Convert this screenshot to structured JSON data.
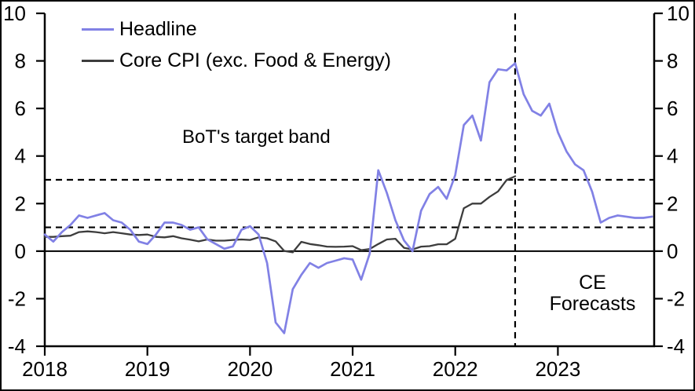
{
  "chart_data": {
    "type": "line",
    "title": "",
    "xlabel": "",
    "ylabel": "",
    "x_frequency": "monthly",
    "x_start": "2018-01",
    "x_end": "2023-12",
    "x_tick_labels": [
      "2018",
      "2019",
      "2020",
      "2021",
      "2022",
      "2023"
    ],
    "y_ticks": [
      10,
      8,
      6,
      4,
      2,
      0,
      -2,
      -4
    ],
    "ylim": [
      -4,
      10
    ],
    "y_axis_sides": "both",
    "grid": false,
    "legend_position": "top-left",
    "series": [
      {
        "name": "Headline",
        "color": "#8181e5",
        "forecast_start_index": 56,
        "values": [
          0.7,
          0.4,
          0.8,
          1.1,
          1.5,
          1.4,
          1.5,
          1.6,
          1.3,
          1.2,
          0.9,
          0.4,
          0.3,
          0.7,
          1.2,
          1.2,
          1.1,
          0.9,
          1.0,
          0.5,
          0.3,
          0.1,
          0.2,
          0.9,
          1.05,
          0.7,
          -0.5,
          -3.0,
          -3.45,
          -1.6,
          -1.0,
          -0.5,
          -0.7,
          -0.5,
          -0.4,
          -0.3,
          -0.35,
          -1.2,
          -0.1,
          3.4,
          2.45,
          1.3,
          0.45,
          0.0,
          1.7,
          2.4,
          2.7,
          2.2,
          3.2,
          5.3,
          5.7,
          4.65,
          7.1,
          7.65,
          7.6,
          7.9,
          6.6,
          5.9,
          5.7,
          6.2,
          5.0,
          4.2,
          3.65,
          3.4,
          2.5,
          1.2,
          1.4,
          1.5,
          1.45,
          1.4,
          1.4,
          1.45
        ]
      },
      {
        "name": "Core CPI (exc. Food & Energy)",
        "color": "#3d3d3d",
        "values": [
          0.6,
          0.6,
          0.63,
          0.65,
          0.8,
          0.83,
          0.8,
          0.75,
          0.8,
          0.75,
          0.7,
          0.68,
          0.7,
          0.6,
          0.58,
          0.63,
          0.54,
          0.48,
          0.41,
          0.49,
          0.44,
          0.44,
          0.47,
          0.49,
          0.47,
          0.58,
          0.54,
          0.41,
          0.01,
          -0.05,
          0.39,
          0.3,
          0.25,
          0.19,
          0.18,
          0.19,
          0.21,
          0.04,
          0.09,
          0.3,
          0.49,
          0.52,
          0.14,
          0.07,
          0.19,
          0.21,
          0.29,
          0.29,
          0.52,
          1.8,
          2.0,
          2.0,
          2.28,
          2.51,
          2.99,
          3.15
        ]
      }
    ],
    "reference_lines": {
      "zero_line": 0,
      "target_band": {
        "lower": 1,
        "upper": 3,
        "style": "dashed"
      },
      "forecast_divider_month_index": 55,
      "forecast_divider_date": "2022-08"
    },
    "annotations": {
      "target_band_label": "BoT's target band",
      "forecast_label_line1": "CE",
      "forecast_label_line2": "Forecasts"
    },
    "colors": {
      "axis": "#000000",
      "background": "#ffffff",
      "headline": "#8181e5",
      "core": "#3d3d3d"
    }
  },
  "legend": {
    "items": [
      {
        "label": "Headline"
      },
      {
        "label": "Core CPI (exc. Food & Energy)"
      }
    ]
  }
}
